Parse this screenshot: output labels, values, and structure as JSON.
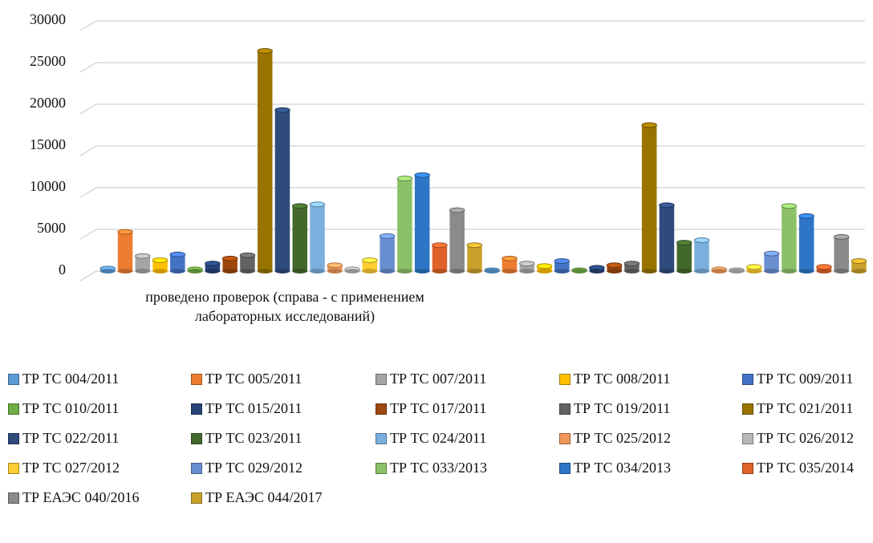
{
  "chart_data": {
    "type": "bar3d",
    "categories": [
      "проведено проверок (справа - с применением лабораторных исследований)",
      null
    ],
    "ylim": [
      0,
      30000
    ],
    "yticks": [
      0,
      5000,
      10000,
      15000,
      20000,
      25000,
      30000
    ],
    "grid": true,
    "series": [
      {
        "name": "ТР ТС 004/2011",
        "color": "#5b9bd5",
        "values": [
          300,
          100
        ]
      },
      {
        "name": "ТР ТС 005/2011",
        "color": "#ed7d31",
        "values": [
          4700,
          1500
        ]
      },
      {
        "name": "ТР ТС 007/2011",
        "color": "#a5a5a5",
        "values": [
          1800,
          900
        ]
      },
      {
        "name": "ТР ТС 008/2011",
        "color": "#ffc000",
        "values": [
          1300,
          600
        ]
      },
      {
        "name": "ТР ТС 009/2011",
        "color": "#4472c4",
        "values": [
          2000,
          1200
        ]
      },
      {
        "name": "ТР ТС 010/2011",
        "color": "#70ad47",
        "values": [
          200,
          100
        ]
      },
      {
        "name": "ТР ТС 015/2011",
        "color": "#264478",
        "values": [
          900,
          400
        ]
      },
      {
        "name": "ТР ТС 017/2011",
        "color": "#9e480e",
        "values": [
          1500,
          700
        ]
      },
      {
        "name": "ТР ТС 019/2011",
        "color": "#636363",
        "values": [
          1900,
          900
        ]
      },
      {
        "name": "ТР ТС 021/2011",
        "color": "#997300",
        "values": [
          26400,
          17500
        ]
      },
      {
        "name": "ТР ТС 022/2011",
        "color": "#2f4b7c",
        "values": [
          19300,
          7900
        ]
      },
      {
        "name": "ТР ТС 023/2011",
        "color": "#43682b",
        "values": [
          7800,
          3400
        ]
      },
      {
        "name": "ТР ТС 024/2011",
        "color": "#7cafdd",
        "values": [
          8000,
          3700
        ]
      },
      {
        "name": "ТР ТС 025/2012",
        "color": "#f1975a",
        "values": [
          700,
          200
        ]
      },
      {
        "name": "ТР ТС 026/2012",
        "color": "#b7b7b7",
        "values": [
          200,
          100
        ]
      },
      {
        "name": "ТР ТС 027/2012",
        "color": "#ffcd33",
        "values": [
          1300,
          500
        ]
      },
      {
        "name": "ТР ТС 029/2012",
        "color": "#698ed0",
        "values": [
          4200,
          2100
        ]
      },
      {
        "name": "ТР ТС 033/2013",
        "color": "#8cc168",
        "values": [
          11100,
          7800
        ]
      },
      {
        "name": "ТР ТС 034/2013",
        "color": "#2e75c6",
        "values": [
          11500,
          6600
        ]
      },
      {
        "name": "ТР ТС 035/2014",
        "color": "#e0622a",
        "values": [
          3100,
          500
        ]
      },
      {
        "name": "ТР ЕАЭС 040/2016",
        "color": "#8a8a8a",
        "values": [
          7300,
          4100
        ]
      },
      {
        "name": "ТР ЕАЭС 044/2017",
        "color": "#c9a02a",
        "values": [
          3100,
          1200
        ]
      }
    ]
  }
}
